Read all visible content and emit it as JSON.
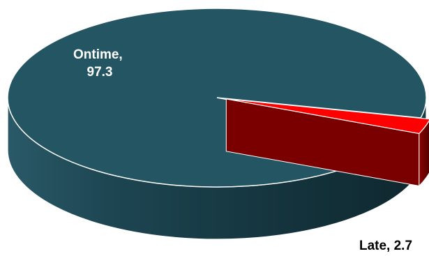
{
  "chart_data": {
    "type": "pie",
    "style": "3d-exploded",
    "slices": [
      {
        "label": "Ontime",
        "value": 97.3,
        "display": "Ontime, 97.3",
        "line1": "Ontime,",
        "line2": "97.3",
        "color": "#235563",
        "side_color": "#1a3f4a",
        "label_color": "#ffffff"
      },
      {
        "label": "Late",
        "value": 2.7,
        "display": "Late, 2.7",
        "color": "#ff0000",
        "side_color": "#6b0000",
        "label_color": "#000000"
      }
    ],
    "title": "",
    "legend": "none"
  }
}
